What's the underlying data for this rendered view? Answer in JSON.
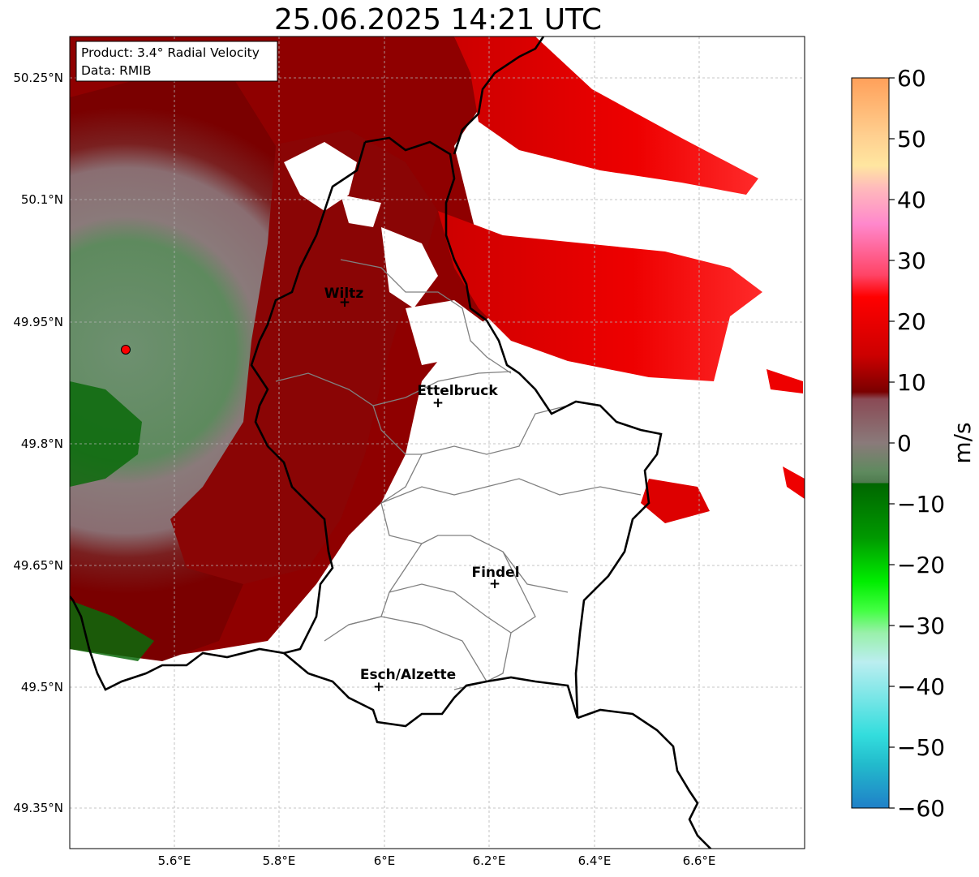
{
  "title": "25.06.2025 14:21 UTC",
  "info_box": {
    "product": "Product: 3.4° Radial Velocity",
    "data": "Data: RMIB"
  },
  "cities": [
    {
      "name": "Wiltz"
    },
    {
      "name": "Ettelbruck"
    },
    {
      "name": "Findel"
    },
    {
      "name": "Esch/Alzette"
    }
  ],
  "axes": {
    "lon_ticks": [
      "5.6°E",
      "5.8°E",
      "6°E",
      "6.2°E",
      "6.4°E",
      "6.6°E"
    ],
    "lat_ticks": [
      "50.25°N",
      "50.1°N",
      "49.95°N",
      "49.8°N",
      "49.65°N",
      "49.5°N",
      "49.35°N"
    ],
    "grid": true
  },
  "colorbar": {
    "unit": "m/s",
    "min": -60,
    "max": 60,
    "ticks": [
      "60",
      "50",
      "40",
      "30",
      "20",
      "10",
      "0",
      "−10",
      "−20",
      "−30",
      "−40",
      "−50",
      "−60"
    ],
    "colors": {
      "positive_high": "#ffa05a",
      "positive_mid": "#ff0000",
      "positive_low": "#7a0000",
      "near_zero": "#8a7a7a",
      "near_zero_neg": "#5e8a5e",
      "negative_low": "#006600",
      "negative_mid": "#00dd00",
      "negative_high": "#2288cc"
    }
  },
  "radar_site_color": "#ff0000"
}
